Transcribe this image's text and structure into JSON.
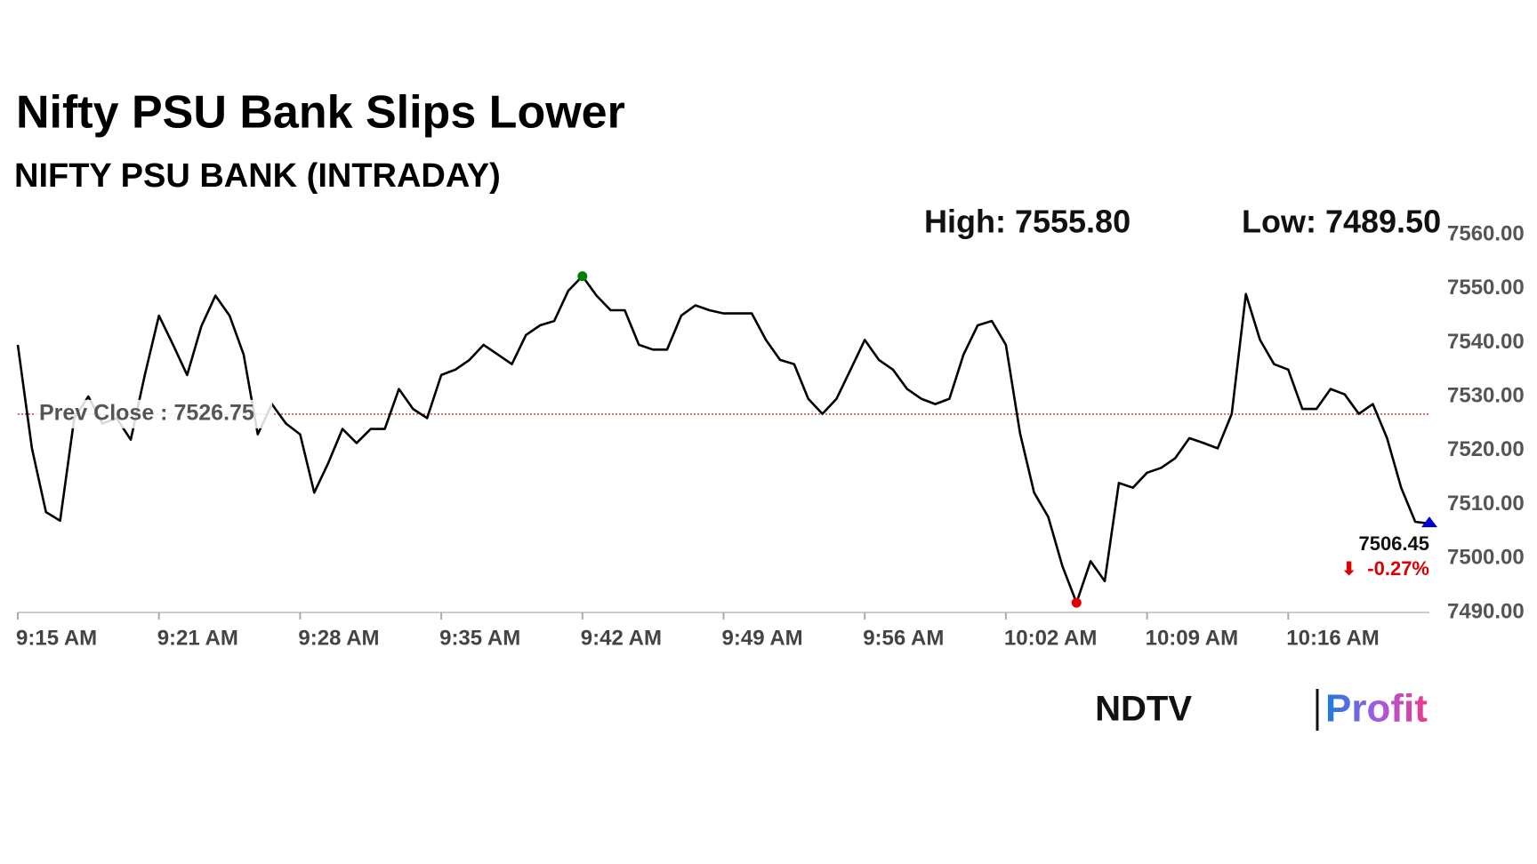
{
  "chart_data": {
    "type": "line",
    "title": "Nifty PSU Bank Slips Lower",
    "subtitle": "NIFTY PSU BANK (INTRADAY)",
    "high_label": "High: 7555.80",
    "low_label": "Low: 7489.50",
    "prev_close": {
      "label": "Prev Close : 7526.75",
      "value": 7526.75
    },
    "change_label": "-0.27%",
    "logo": {
      "left": "NDTV",
      "right": "Profit"
    },
    "categories": [
      "9:15 AM",
      null,
      null,
      null,
      null,
      null,
      null,
      null,
      null,
      null,
      "9:21 AM",
      null,
      null,
      null,
      null,
      null,
      null,
      null,
      null,
      null,
      "9:28 AM",
      null,
      null,
      null,
      null,
      null,
      null,
      null,
      null,
      null,
      "9:35 AM",
      null,
      null,
      null,
      null,
      null,
      null,
      null,
      null,
      null,
      "9:42 AM",
      null,
      null,
      null,
      null,
      null,
      null,
      null,
      null,
      null,
      "9:49 AM",
      null,
      null,
      null,
      null,
      null,
      null,
      null,
      null,
      null,
      "9:56 AM",
      null,
      null,
      null,
      null,
      null,
      null,
      null,
      null,
      null,
      "10:02 AM",
      null,
      null,
      null,
      null,
      null,
      null,
      null,
      null,
      null,
      "10:09 AM",
      null,
      null,
      null,
      null,
      null,
      null,
      null,
      null,
      null,
      "10:16 AM",
      null,
      null,
      null,
      null,
      null,
      null,
      null,
      null,
      null,
      null
    ],
    "series": [
      {
        "name": "NIFTY PSU BANK",
        "color": "#000000",
        "values": [
          7539.6,
          7520.4,
          7508.6,
          7507.0,
          7526.0,
          7530.0,
          7525.0,
          7526.0,
          7522.0,
          7534.0,
          7545.0,
          7539.6,
          7534.0,
          7543.0,
          7548.7,
          7545.0,
          7537.8,
          7523.0,
          7528.6,
          7525.0,
          7523.0,
          7512.2,
          7517.7,
          7524.0,
          7521.4,
          7524.0,
          7524.0,
          7531.4,
          7527.7,
          7526.0,
          7534.0,
          7535.0,
          7536.8,
          7539.6,
          7537.8,
          7536.0,
          7541.4,
          7543.2,
          7544.0,
          7549.6,
          7552.3,
          7548.7,
          7546.0,
          7546.0,
          7539.6,
          7538.7,
          7538.7,
          7545.0,
          7546.9,
          7546.0,
          7545.4,
          7545.4,
          7545.4,
          7540.5,
          7536.8,
          7536.0,
          7529.6,
          7526.8,
          7529.6,
          7535.0,
          7540.5,
          7536.8,
          7535.0,
          7531.4,
          7529.6,
          7528.6,
          7529.6,
          7537.8,
          7543.2,
          7544.0,
          7539.6,
          7523.2,
          7512.2,
          7507.7,
          7498.6,
          7491.8,
          7499.5,
          7495.8,
          7514.0,
          7513.1,
          7515.9,
          7516.8,
          7518.6,
          7522.3,
          7521.4,
          7520.4,
          7526.8,
          7549.0,
          7540.5,
          7536.0,
          7535.0,
          7527.7,
          7527.7,
          7531.4,
          7530.4,
          7526.8,
          7528.6,
          7522.3,
          7513.1,
          7506.8,
          7506.45
        ]
      }
    ],
    "ylim": [
      7490,
      7560
    ],
    "yticks": [
      {
        "value": 7490,
        "label": "7490.00"
      },
      {
        "value": 7500,
        "label": "7500.00"
      },
      {
        "value": 7510,
        "label": "7510.00"
      },
      {
        "value": 7520,
        "label": "7520.00"
      },
      {
        "value": 7530,
        "label": "7530.00"
      },
      {
        "value": 7540,
        "label": "7540.00"
      },
      {
        "value": 7550,
        "label": "7550.00"
      },
      {
        "value": 7560,
        "label": "7560.00"
      }
    ],
    "high_color": "#008000",
    "low_color": "#e00000",
    "last_color": "#0000cc",
    "grid": false
  }
}
